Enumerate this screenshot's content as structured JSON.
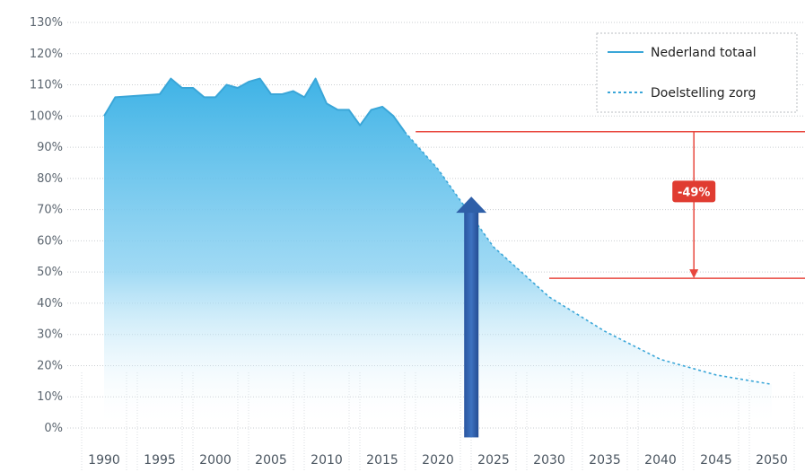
{
  "chart_data": {
    "type": "area",
    "title": "",
    "xlabel": "",
    "ylabel": "",
    "xlim": [
      1990,
      2050
    ],
    "ylim": [
      0,
      130
    ],
    "x_ticks": [
      "1990",
      "1995",
      "2000",
      "2005",
      "2010",
      "2015",
      "2020",
      "2025",
      "2030",
      "2035",
      "2040",
      "2045",
      "2050"
    ],
    "y_ticks": [
      "0%",
      "10%",
      "20%",
      "30%",
      "40%",
      "50%",
      "60%",
      "70%",
      "80%",
      "90%",
      "100%",
      "110%",
      "120%",
      "130%"
    ],
    "grid": "horizontal dotted",
    "legend_position": "top-right",
    "colors": {
      "actual_line": "#3aa6d8",
      "target_line": "#3aa6d8",
      "fill_top": "#3fb3e6",
      "fill_bottom": "#ffffff",
      "reference_lines": "#e8473e",
      "arrow": "#2f5fa8",
      "callout_bg": "#e03c31"
    },
    "series": [
      {
        "name": "Nederland totaal",
        "style": "solid",
        "x": [
          1990,
          1991,
          1995,
          1996,
          1997,
          1998,
          1999,
          2000,
          2001,
          2002,
          2003,
          2004,
          2005,
          2006,
          2007,
          2008,
          2009,
          2010,
          2011,
          2012,
          2013,
          2014,
          2015,
          2016,
          2017
        ],
        "y": [
          100,
          106,
          107,
          112,
          109,
          109,
          106,
          106,
          110,
          109,
          111,
          112,
          107,
          107,
          108,
          106,
          112,
          104,
          102,
          102,
          97,
          102,
          103,
          100,
          95
        ]
      },
      {
        "name": "Doelstelling zorg",
        "style": "dotted",
        "x": [
          2017,
          2018,
          2020,
          2022,
          2025,
          2030,
          2035,
          2040,
          2045,
          2050
        ],
        "y": [
          95,
          91,
          83,
          73,
          58,
          42,
          31,
          22,
          17,
          14
        ]
      }
    ],
    "reference_lines": [
      {
        "y": 95,
        "x_from": 2018
      },
      {
        "y": 48,
        "x_from": 2030
      }
    ],
    "annotations": [
      {
        "text": "-49%",
        "type": "callout-arrow",
        "x": 2043,
        "y_from": 95,
        "y_to": 48
      },
      {
        "type": "upward-arrow",
        "x": 2023,
        "y_from": -3,
        "y_to": 73
      }
    ]
  }
}
